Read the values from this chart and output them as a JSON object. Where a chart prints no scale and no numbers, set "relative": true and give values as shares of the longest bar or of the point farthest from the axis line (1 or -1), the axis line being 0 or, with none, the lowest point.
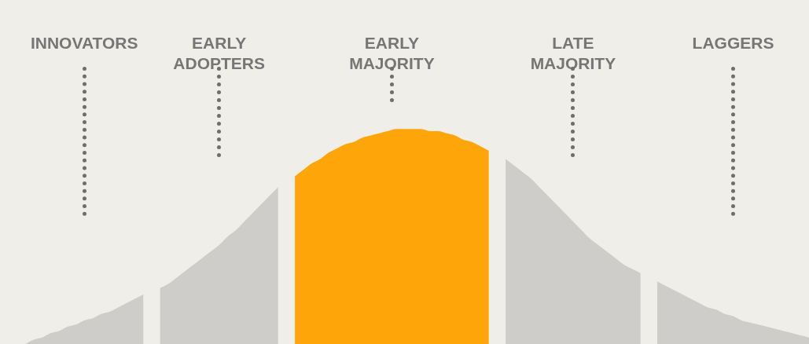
{
  "chart_data": {
    "type": "area",
    "relative": true,
    "annotations": [
      "INNOVATORS",
      "EARLY ADOPTERS",
      "EARLY MAJORITY",
      "LATE MAJORITY",
      "LAGGERS"
    ],
    "categories": [
      null,
      null,
      null,
      null,
      null,
      null,
      null,
      null,
      null,
      null,
      null,
      null,
      null,
      null,
      null,
      null,
      null,
      null,
      null,
      null,
      null,
      null,
      null,
      null,
      null,
      null,
      null,
      null,
      null,
      null,
      null,
      null,
      null,
      null,
      null,
      null,
      null,
      null,
      null,
      null,
      null,
      null,
      null,
      null,
      null,
      null,
      null,
      null,
      null,
      null,
      null,
      null,
      null,
      null,
      null,
      null,
      null,
      null,
      null,
      null,
      null,
      null,
      null,
      null,
      null,
      null,
      null,
      null,
      null,
      null,
      null,
      null,
      null,
      null,
      null,
      null,
      null,
      null,
      null,
      null,
      null,
      null,
      null,
      null,
      null,
      null,
      null,
      null,
      null,
      null,
      null,
      null,
      null,
      null,
      null,
      null,
      null
    ],
    "series": [
      {
        "color": "#cecdca",
        "values": [
          null,
          null,
          null,
          0.0,
          0.02,
          0.03,
          0.05,
          0.06,
          0.08,
          0.09,
          0.11,
          0.12,
          0.14,
          0.15,
          0.17,
          0.19,
          0.21,
          0.23,
          null,
          null,
          null,
          null,
          null,
          null,
          null,
          null,
          null,
          null,
          null,
          null,
          null,
          null,
          null,
          null,
          null,
          null,
          null,
          null,
          null,
          null,
          null,
          null,
          null,
          null,
          null,
          null,
          null,
          null,
          null,
          null,
          null,
          null,
          null,
          null,
          null,
          null,
          null,
          null,
          null,
          null,
          null,
          null,
          null,
          null,
          null,
          null,
          null,
          null,
          null,
          null,
          null,
          null,
          null,
          null,
          null,
          null,
          null,
          null,
          null,
          null,
          null,
          null,
          null,
          null,
          null,
          null,
          null,
          null,
          null,
          null,
          null,
          null,
          null,
          null,
          null,
          null,
          null
        ]
      },
      {
        "color": "#cecdca",
        "values": [
          null,
          null,
          null,
          null,
          null,
          null,
          null,
          null,
          null,
          null,
          null,
          null,
          null,
          null,
          null,
          null,
          null,
          null,
          null,
          0.26,
          0.28,
          0.31,
          0.34,
          0.37,
          0.4,
          0.43,
          0.46,
          0.5,
          0.53,
          0.57,
          0.61,
          0.65,
          0.69,
          0.73,
          null,
          null,
          null,
          null,
          null,
          null,
          null,
          null,
          null,
          null,
          null,
          null,
          null,
          null,
          null,
          null,
          null,
          null,
          null,
          null,
          null,
          null,
          null,
          null,
          null,
          null,
          null,
          null,
          null,
          null,
          null,
          null,
          null,
          null,
          null,
          null,
          null,
          null,
          null,
          null,
          null,
          null,
          null,
          null,
          null,
          null,
          null,
          null,
          null,
          null,
          null,
          null,
          null,
          null,
          null,
          null,
          null,
          null,
          null,
          null,
          null,
          null,
          null
        ]
      },
      {
        "color": "#fea50a",
        "values": [
          null,
          null,
          null,
          null,
          null,
          null,
          null,
          null,
          null,
          null,
          null,
          null,
          null,
          null,
          null,
          null,
          null,
          null,
          null,
          null,
          null,
          null,
          null,
          null,
          null,
          null,
          null,
          null,
          null,
          null,
          null,
          null,
          null,
          null,
          null,
          0.78,
          0.81,
          0.84,
          0.86,
          0.89,
          0.91,
          0.93,
          0.94,
          0.96,
          0.97,
          0.98,
          0.99,
          1.0,
          1.0,
          1.0,
          1.0,
          0.99,
          0.99,
          0.98,
          0.97,
          0.95,
          0.94,
          0.92,
          0.9,
          null,
          null,
          null,
          null,
          null,
          null,
          null,
          null,
          null,
          null,
          null,
          null,
          null,
          null,
          null,
          null,
          null,
          null,
          null,
          null,
          null,
          null,
          null,
          null,
          null,
          null,
          null,
          null,
          null,
          null,
          null,
          null,
          null,
          null,
          null,
          null,
          null,
          null
        ]
      },
      {
        "color": "#cecdca",
        "values": [
          null,
          null,
          null,
          null,
          null,
          null,
          null,
          null,
          null,
          null,
          null,
          null,
          null,
          null,
          null,
          null,
          null,
          null,
          null,
          null,
          null,
          null,
          null,
          null,
          null,
          null,
          null,
          null,
          null,
          null,
          null,
          null,
          null,
          null,
          null,
          null,
          null,
          null,
          null,
          null,
          null,
          null,
          null,
          null,
          null,
          null,
          null,
          null,
          null,
          null,
          null,
          null,
          null,
          null,
          null,
          null,
          null,
          null,
          null,
          null,
          0.86,
          0.83,
          0.8,
          0.77,
          0.73,
          0.69,
          0.65,
          0.61,
          0.57,
          0.53,
          0.49,
          0.46,
          0.43,
          0.4,
          0.37,
          0.35,
          0.33,
          null,
          null,
          null,
          null,
          null,
          null,
          null,
          null,
          null,
          null,
          null,
          null,
          null,
          null,
          null,
          null,
          null,
          null,
          null,
          null
        ]
      },
      {
        "color": "#cecdca",
        "values": [
          null,
          null,
          null,
          null,
          null,
          null,
          null,
          null,
          null,
          null,
          null,
          null,
          null,
          null,
          null,
          null,
          null,
          null,
          null,
          null,
          null,
          null,
          null,
          null,
          null,
          null,
          null,
          null,
          null,
          null,
          null,
          null,
          null,
          null,
          null,
          null,
          null,
          null,
          null,
          null,
          null,
          null,
          null,
          null,
          null,
          null,
          null,
          null,
          null,
          null,
          null,
          null,
          null,
          null,
          null,
          null,
          null,
          null,
          null,
          null,
          null,
          null,
          null,
          null,
          null,
          null,
          null,
          null,
          null,
          null,
          null,
          null,
          null,
          null,
          null,
          null,
          null,
          null,
          0.29,
          0.27,
          0.25,
          0.23,
          0.21,
          0.19,
          0.17,
          0.16,
          0.14,
          0.13,
          0.11,
          0.1,
          0.09,
          0.08,
          0.07,
          0.06,
          0.05,
          0.04,
          0.03
        ]
      }
    ]
  }
}
